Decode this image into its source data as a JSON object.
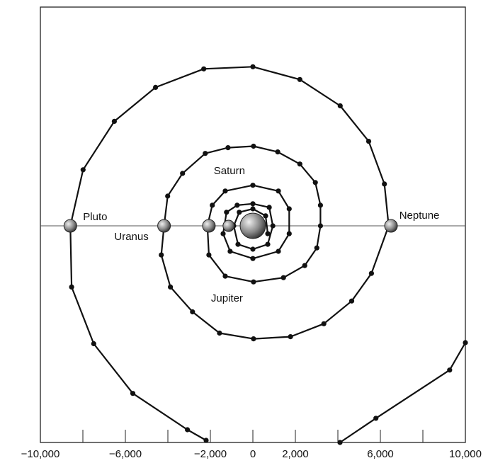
{
  "chart_data": {
    "type": "line",
    "xlim": [
      -10000,
      10000
    ],
    "ylim": [
      -10200,
      10300
    ],
    "xticks": [
      {
        "value": -10000,
        "label": "−10,000"
      },
      {
        "value": -6000,
        "label": "−6,000"
      },
      {
        "value": -2000,
        "label": "−2,000"
      },
      0,
      {
        "value": 2000,
        "label": "2,000"
      },
      {
        "value": 6000,
        "label": "6,000"
      },
      {
        "value": 10000,
        "label": "10,000"
      }
    ],
    "xminor_ticks": [
      -8000,
      -4000,
      4000,
      8000
    ],
    "color": "#111111",
    "series": [
      {
        "x": [
          -2200,
          -3080,
          -5650,
          -7490,
          -8530,
          -8590,
          -7990,
          -6520,
          -4580,
          -2310,
          0,
          2210,
          4110,
          5450,
          6190,
          6390,
          5580,
          4650,
          3340,
          1770,
          30,
          -1570,
          -2840,
          -3880,
          -4310,
          -4180,
          -4010,
          -3310,
          -2240,
          -1170,
          30,
          1170,
          2210,
          2940,
          3180,
          3180,
          3010,
          2440,
          1440,
          30,
          -1300,
          -2070,
          -2140,
          -1910,
          -1300,
          0,
          1200,
          1710,
          1710,
          1200,
          0,
          -1070,
          -1400,
          -1240,
          -740,
          0,
          770,
          940,
          700,
          0,
          -700,
          -900,
          -640,
          0,
          600,
          700,
          null,
          4100,
          5790,
          9260,
          10000
        ],
        "values": [
          -10100,
          -9600,
          -7890,
          -5550,
          -2880,
          0,
          2640,
          4920,
          6520,
          7390,
          7490,
          6890,
          5650,
          3980,
          1970,
          0,
          -2240,
          -3540,
          -4610,
          -5220,
          -5320,
          -5050,
          -4050,
          -2880,
          -1370,
          0,
          1400,
          2470,
          3410,
          3680,
          3750,
          3480,
          2910,
          2040,
          970,
          0,
          -1040,
          -1870,
          -2440,
          -2640,
          -2370,
          -1370,
          0,
          970,
          1640,
          1910,
          1640,
          800,
          -370,
          -1200,
          -1540,
          -1200,
          -370,
          640,
          970,
          1040,
          870,
          0,
          -870,
          -1100,
          -870,
          0,
          640,
          800,
          470,
          -370,
          null,
          -10200,
          -9060,
          -6790,
          -5500
        ]
      }
    ],
    "bodies": {
      "x": [
        -8590,
        -4180,
        -2070,
        -1140,
        0,
        6500
      ],
      "values": [
        0,
        0,
        0,
        0,
        0,
        0
      ],
      "sizes": [
        9,
        9,
        9,
        8,
        18,
        9
      ]
    },
    "annotations": [
      {
        "text": "Pluto",
        "x": -7990,
        "y": 400
      },
      {
        "text": "Uranus",
        "x": -6520,
        "y": -530
      },
      {
        "text": "Saturn",
        "x": -1840,
        "y": 2570
      },
      {
        "text": "Jupiter",
        "x": -1970,
        "y": -3440
      },
      {
        "text": "Neptune",
        "x": 6890,
        "y": 470
      }
    ]
  }
}
